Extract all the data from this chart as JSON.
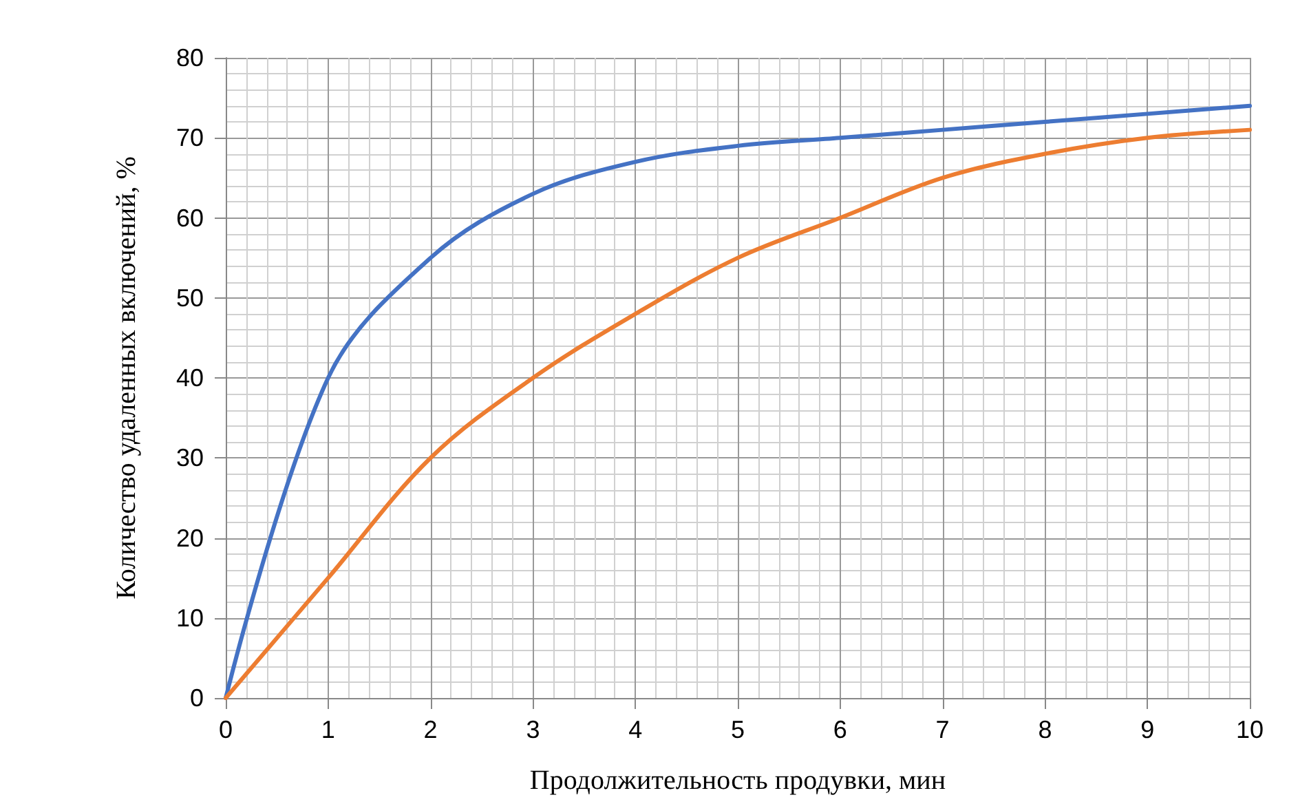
{
  "chart_data": {
    "type": "line",
    "xlabel": "Продолжительность продувки, мин",
    "ylabel": "Количество удаленных включений, %",
    "x": [
      0,
      1,
      2,
      3,
      4,
      5,
      6,
      7,
      8,
      9,
      10
    ],
    "series": [
      {
        "color": "#4472c4",
        "values": [
          0,
          40,
          55,
          63,
          67,
          69,
          70,
          71,
          72,
          73,
          74
        ]
      },
      {
        "color": "#ed7d31",
        "values": [
          0,
          15,
          30,
          40,
          48,
          55,
          60,
          65,
          68,
          70,
          71
        ]
      }
    ],
    "xlim": [
      0,
      10
    ],
    "xticks": [
      0,
      1,
      2,
      3,
      4,
      5,
      6,
      7,
      8,
      9,
      10
    ],
    "ylim": [
      0,
      80
    ],
    "yticks": [
      0,
      10,
      20,
      30,
      40,
      50,
      60,
      70,
      80
    ],
    "grid": true,
    "marker": "none",
    "line_style": "solid"
  }
}
